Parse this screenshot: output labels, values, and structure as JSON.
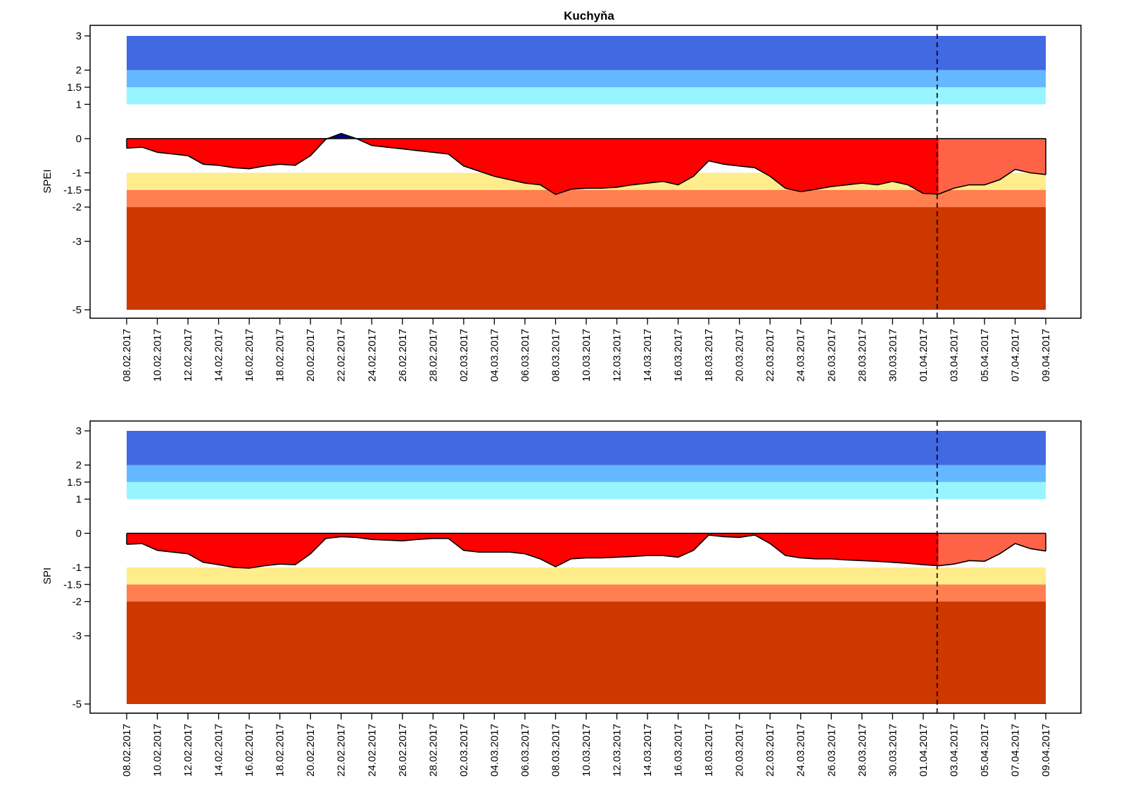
{
  "chart_data": [
    {
      "type": "area",
      "title": "Kuchyňa",
      "ylabel": "SPEI",
      "xlabel": "",
      "y_ticks": [
        3,
        2,
        1.5,
        1,
        0,
        -1,
        -1.5,
        -2,
        -3,
        -5
      ],
      "y_tick_labels": [
        "3",
        "2",
        "1.5",
        "1",
        "0",
        "-1",
        "-1.5",
        "-2",
        "-3",
        "-5"
      ],
      "ylim": [
        -5,
        3
      ],
      "x_tick_labels": [
        "08.02.2017",
        "10.02.2017",
        "12.02.2017",
        "14.02.2017",
        "16.02.2017",
        "18.02.2017",
        "20.02.2017",
        "22.02.2017",
        "24.02.2017",
        "26.02.2017",
        "28.02.2017",
        "02.03.2017",
        "04.03.2017",
        "06.03.2017",
        "08.03.2017",
        "10.03.2017",
        "12.03.2017",
        "14.03.2017",
        "16.03.2017",
        "18.03.2017",
        "20.03.2017",
        "22.03.2017",
        "24.03.2017",
        "26.03.2017",
        "28.03.2017",
        "30.03.2017",
        "01.04.2017",
        "03.04.2017",
        "05.04.2017",
        "07.04.2017",
        "09.04.2017"
      ],
      "forecast_start": "02.04.2017",
      "bands": [
        {
          "from": 2,
          "to": 3,
          "color": "#4169e1"
        },
        {
          "from": 1.5,
          "to": 2,
          "color": "#63b8ff"
        },
        {
          "from": 1,
          "to": 1.5,
          "color": "#98f5ff"
        },
        {
          "from": -1.5,
          "to": -1,
          "color": "#ffec8b"
        },
        {
          "from": -2,
          "to": -1.5,
          "color": "#ff7f50"
        },
        {
          "from": -5,
          "to": -2,
          "color": "#cd3700"
        }
      ],
      "fill_colors": {
        "negative": "#ff0000",
        "positive": "#00008b",
        "forecast_negative": "#ff6347"
      },
      "x": [
        "08.02.2017",
        "09.02.2017",
        "10.02.2017",
        "11.02.2017",
        "12.02.2017",
        "13.02.2017",
        "14.02.2017",
        "15.02.2017",
        "16.02.2017",
        "17.02.2017",
        "18.02.2017",
        "19.02.2017",
        "20.02.2017",
        "21.02.2017",
        "22.02.2017",
        "23.02.2017",
        "24.02.2017",
        "25.02.2017",
        "26.02.2017",
        "27.02.2017",
        "28.02.2017",
        "01.03.2017",
        "02.03.2017",
        "03.03.2017",
        "04.03.2017",
        "05.03.2017",
        "06.03.2017",
        "07.03.2017",
        "08.03.2017",
        "09.03.2017",
        "10.03.2017",
        "11.03.2017",
        "12.03.2017",
        "13.03.2017",
        "14.03.2017",
        "15.03.2017",
        "16.03.2017",
        "17.03.2017",
        "18.03.2017",
        "19.03.2017",
        "20.03.2017",
        "21.03.2017",
        "22.03.2017",
        "23.03.2017",
        "24.03.2017",
        "25.03.2017",
        "26.03.2017",
        "27.03.2017",
        "28.03.2017",
        "29.03.2017",
        "30.03.2017",
        "31.03.2017",
        "01.04.2017",
        "02.04.2017",
        "03.04.2017",
        "04.04.2017",
        "05.04.2017",
        "06.04.2017",
        "07.04.2017",
        "08.04.2017",
        "09.04.2017"
      ],
      "values": [
        -0.28,
        -0.25,
        -0.4,
        -0.45,
        -0.5,
        -0.75,
        -0.78,
        -0.85,
        -0.88,
        -0.8,
        -0.75,
        -0.78,
        -0.5,
        -0.02,
        0.15,
        0.0,
        -0.2,
        -0.25,
        -0.3,
        -0.35,
        -0.4,
        -0.45,
        -0.8,
        -0.95,
        -1.1,
        -1.2,
        -1.3,
        -1.35,
        -1.63,
        -1.48,
        -1.45,
        -1.45,
        -1.42,
        -1.35,
        -1.3,
        -1.25,
        -1.35,
        -1.1,
        -0.65,
        -0.75,
        -0.8,
        -0.85,
        -1.1,
        -1.45,
        -1.55,
        -1.48,
        -1.4,
        -1.35,
        -1.3,
        -1.35,
        -1.25,
        -1.35,
        -1.6,
        -1.62,
        -1.45,
        -1.35,
        -1.35,
        -1.2,
        -0.9,
        -1.0,
        -1.05
      ]
    },
    {
      "type": "area",
      "title": "",
      "ylabel": "SPI",
      "xlabel": "",
      "y_ticks": [
        3,
        2,
        1.5,
        1,
        0,
        -1,
        -1.5,
        -2,
        -3,
        -5
      ],
      "y_tick_labels": [
        "3",
        "2",
        "1.5",
        "1",
        "0",
        "-1",
        "-1.5",
        "-2",
        "-3",
        "-5"
      ],
      "ylim": [
        -5,
        3
      ],
      "x_tick_labels": [
        "08.02.2017",
        "10.02.2017",
        "12.02.2017",
        "14.02.2017",
        "16.02.2017",
        "18.02.2017",
        "20.02.2017",
        "22.02.2017",
        "24.02.2017",
        "26.02.2017",
        "28.02.2017",
        "02.03.2017",
        "04.03.2017",
        "06.03.2017",
        "08.03.2017",
        "10.03.2017",
        "12.03.2017",
        "14.03.2017",
        "16.03.2017",
        "18.03.2017",
        "20.03.2017",
        "22.03.2017",
        "24.03.2017",
        "26.03.2017",
        "28.03.2017",
        "30.03.2017",
        "01.04.2017",
        "03.04.2017",
        "05.04.2017",
        "07.04.2017",
        "09.04.2017"
      ],
      "forecast_start": "02.04.2017",
      "bands": [
        {
          "from": 2,
          "to": 3,
          "color": "#4169e1"
        },
        {
          "from": 1.5,
          "to": 2,
          "color": "#63b8ff"
        },
        {
          "from": 1,
          "to": 1.5,
          "color": "#98f5ff"
        },
        {
          "from": -1.5,
          "to": -1,
          "color": "#ffec8b"
        },
        {
          "from": -2,
          "to": -1.5,
          "color": "#ff7f50"
        },
        {
          "from": -5,
          "to": -2,
          "color": "#cd3700"
        }
      ],
      "fill_colors": {
        "negative": "#ff0000",
        "positive": "#00008b",
        "forecast_negative": "#ff6347"
      },
      "x": [
        "08.02.2017",
        "09.02.2017",
        "10.02.2017",
        "11.02.2017",
        "12.02.2017",
        "13.02.2017",
        "14.02.2017",
        "15.02.2017",
        "16.02.2017",
        "17.02.2017",
        "18.02.2017",
        "19.02.2017",
        "20.02.2017",
        "21.02.2017",
        "22.02.2017",
        "23.02.2017",
        "24.02.2017",
        "25.02.2017",
        "26.02.2017",
        "27.02.2017",
        "28.02.2017",
        "01.03.2017",
        "02.03.2017",
        "03.03.2017",
        "04.03.2017",
        "05.03.2017",
        "06.03.2017",
        "07.03.2017",
        "08.03.2017",
        "09.03.2017",
        "10.03.2017",
        "11.03.2017",
        "12.03.2017",
        "13.03.2017",
        "14.03.2017",
        "15.03.2017",
        "16.03.2017",
        "17.03.2017",
        "18.03.2017",
        "19.03.2017",
        "20.03.2017",
        "21.03.2017",
        "22.03.2017",
        "23.03.2017",
        "24.03.2017",
        "25.03.2017",
        "26.03.2017",
        "27.03.2017",
        "28.03.2017",
        "29.03.2017",
        "30.03.2017",
        "31.03.2017",
        "01.04.2017",
        "02.04.2017",
        "03.04.2017",
        "04.04.2017",
        "05.04.2017",
        "06.04.2017",
        "07.04.2017",
        "08.04.2017",
        "09.04.2017"
      ],
      "values": [
        -0.32,
        -0.3,
        -0.5,
        -0.55,
        -0.6,
        -0.85,
        -0.92,
        -1.0,
        -1.02,
        -0.95,
        -0.9,
        -0.92,
        -0.6,
        -0.15,
        -0.1,
        -0.12,
        -0.18,
        -0.2,
        -0.22,
        -0.18,
        -0.15,
        -0.15,
        -0.5,
        -0.55,
        -0.55,
        -0.55,
        -0.6,
        -0.75,
        -0.98,
        -0.75,
        -0.72,
        -0.72,
        -0.7,
        -0.68,
        -0.65,
        -0.65,
        -0.7,
        -0.5,
        -0.05,
        -0.1,
        -0.12,
        -0.05,
        -0.3,
        -0.65,
        -0.72,
        -0.75,
        -0.75,
        -0.78,
        -0.8,
        -0.82,
        -0.85,
        -0.88,
        -0.92,
        -0.95,
        -0.9,
        -0.8,
        -0.82,
        -0.6,
        -0.3,
        -0.45,
        -0.52
      ]
    }
  ]
}
